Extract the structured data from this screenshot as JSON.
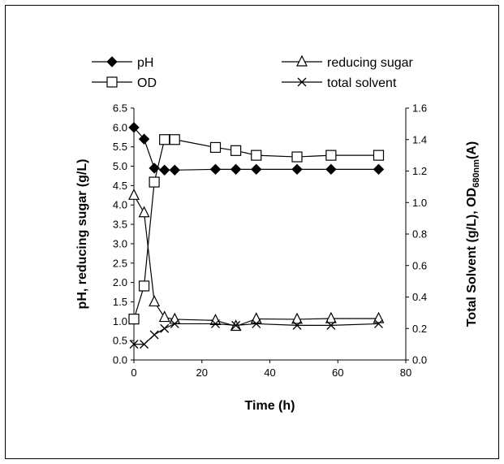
{
  "chart_data": {
    "type": "line",
    "xlabel": "Time (h)",
    "ylabel_left": "pH, reducing sugar (g/L)",
    "ylabel_right_prefix": "Total Solvent (g/L), OD",
    "ylabel_right_subscript": "680nm",
    "ylabel_right_suffix": "(A)",
    "xlim": [
      0,
      80
    ],
    "ylim_left": [
      0,
      6.5
    ],
    "ylim_right": [
      0,
      1.6
    ],
    "x_ticks": [
      "0",
      "20",
      "40",
      "60",
      "80"
    ],
    "y_left_ticks": [
      "0.0",
      "0.5",
      "1.0",
      "1.5",
      "2.0",
      "2.5",
      "3.0",
      "3.5",
      "4.0",
      "4.5",
      "5.0",
      "5.5",
      "6.0",
      "6.5"
    ],
    "y_right_ticks": [
      "0.0",
      "0.2",
      "0.4",
      "0.6",
      "0.8",
      "1.0",
      "1.2",
      "1.4",
      "1.6"
    ],
    "grid": false,
    "legend_position": "top",
    "series": [
      {
        "name": "pH",
        "axis": "left",
        "marker": "diamond",
        "x": [
          0,
          3,
          6,
          9,
          12,
          24,
          30,
          36,
          48,
          58,
          72
        ],
        "y": [
          6.0,
          5.7,
          4.95,
          4.9,
          4.9,
          4.92,
          4.92,
          4.92,
          4.92,
          4.92,
          4.92
        ]
      },
      {
        "name": "reducing sugar",
        "axis": "left",
        "marker": "triangle",
        "x": [
          0,
          3,
          6,
          9,
          12,
          24,
          30,
          36,
          48,
          58,
          72
        ],
        "y": [
          4.25,
          3.8,
          1.5,
          1.1,
          1.05,
          1.02,
          0.87,
          1.06,
          1.05,
          1.07,
          1.07
        ]
      },
      {
        "name": "OD",
        "axis": "right",
        "marker": "square",
        "x": [
          0,
          3,
          6,
          9,
          12,
          24,
          30,
          36,
          48,
          58,
          72
        ],
        "y": [
          0.26,
          0.47,
          1.13,
          1.4,
          1.4,
          1.35,
          1.33,
          1.3,
          1.29,
          1.3,
          1.3
        ]
      },
      {
        "name": "total solvent",
        "axis": "right",
        "marker": "x",
        "x": [
          0,
          3,
          6,
          9,
          12,
          24,
          30,
          36,
          48,
          58,
          72
        ],
        "y": [
          0.1,
          0.1,
          0.16,
          0.2,
          0.23,
          0.23,
          0.22,
          0.23,
          0.22,
          0.22,
          0.23
        ]
      }
    ]
  }
}
